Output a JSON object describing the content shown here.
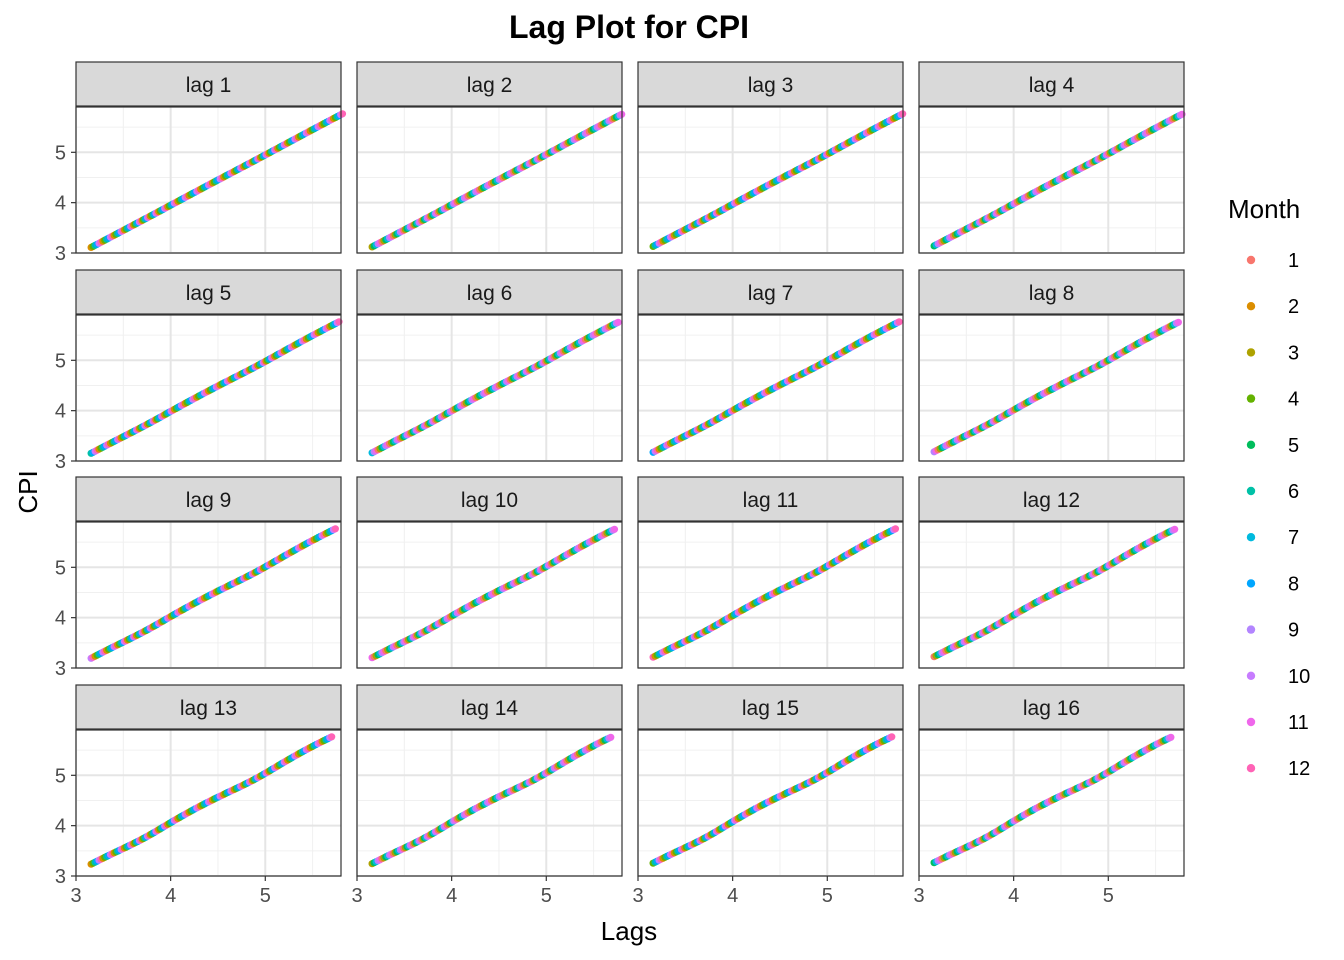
{
  "chart_data": {
    "type": "scatter",
    "title": "Lag Plot for CPI",
    "xlabel": "Lags",
    "ylabel": "CPI",
    "panels": [
      "lag 1",
      "lag 2",
      "lag 3",
      "lag 4",
      "lag 5",
      "lag 6",
      "lag 7",
      "lag 8",
      "lag 9",
      "lag 10",
      "lag 11",
      "lag 12",
      "lag 13",
      "lag 14",
      "lag 15",
      "lag 16"
    ],
    "layout": {
      "rows": 4,
      "cols": 4
    },
    "xlim": [
      3.0,
      5.8
    ],
    "ylim": [
      3.0,
      5.9
    ],
    "x_ticks": [
      3,
      4,
      5
    ],
    "y_ticks": [
      3,
      4,
      5
    ],
    "grid": true,
    "series_range": {
      "start": 3.1,
      "end": 5.73
    },
    "legend": {
      "title": "Month",
      "position": "right",
      "entries": [
        {
          "label": "1",
          "color": "#F8766D"
        },
        {
          "label": "2",
          "color": "#DB8E00"
        },
        {
          "label": "3",
          "color": "#AEA200"
        },
        {
          "label": "4",
          "color": "#64B200"
        },
        {
          "label": "5",
          "color": "#00BD5C"
        },
        {
          "label": "6",
          "color": "#00C1A7"
        },
        {
          "label": "7",
          "color": "#00BADE"
        },
        {
          "label": "8",
          "color": "#00A6FF"
        },
        {
          "label": "9",
          "color": "#B385FF"
        },
        {
          "label": "10",
          "color": "#C77CFF"
        },
        {
          "label": "11",
          "color": "#EF67EB"
        },
        {
          "label": "12",
          "color": "#FF63B6"
        }
      ]
    }
  }
}
